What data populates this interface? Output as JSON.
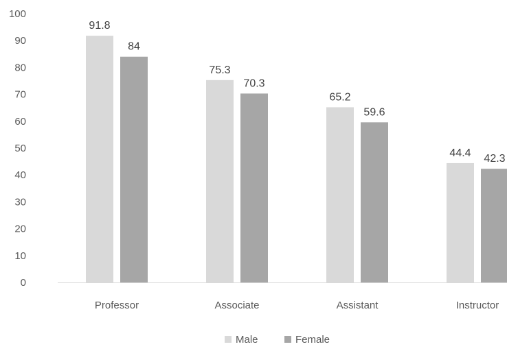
{
  "chart_data": {
    "type": "bar",
    "categories": [
      "Professor",
      "Associate",
      "Assistant",
      "Instructor"
    ],
    "series": [
      {
        "name": "Male",
        "values": [
          91.8,
          75.3,
          65.2,
          44.4
        ]
      },
      {
        "name": "Female",
        "values": [
          84,
          70.3,
          59.6,
          42.3
        ]
      }
    ],
    "data_labels": [
      [
        "91.8",
        "75.3",
        "65.2",
        "44.4"
      ],
      [
        "84",
        "70.3",
        "59.6",
        "42.3"
      ]
    ],
    "ylim": [
      0,
      100
    ],
    "y_ticks": [
      0,
      10,
      20,
      30,
      40,
      50,
      60,
      70,
      80,
      90,
      100
    ],
    "title": "",
    "xlabel": "",
    "ylabel": "",
    "legend_position": "bottom",
    "grid": false,
    "colors": {
      "Male": "#d9d9d9",
      "Female": "#a6a6a6",
      "axis": "#d9d9d9",
      "text": "#595959"
    }
  }
}
